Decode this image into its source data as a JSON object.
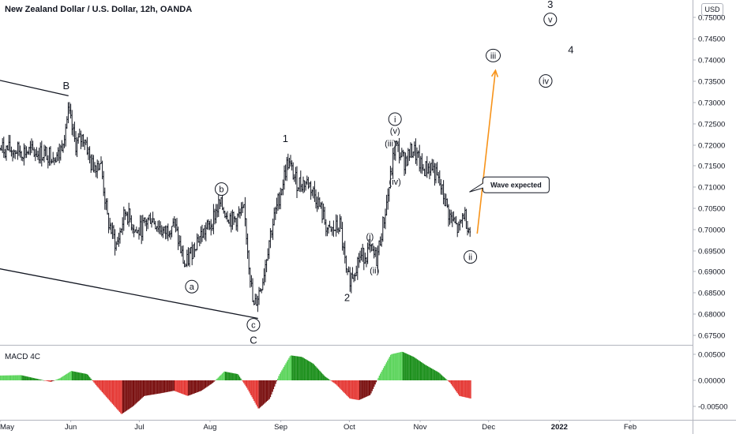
{
  "header": {
    "title": "New Zealand Dollar / U.S. Dollar, 12h, OANDA",
    "currency": "USD",
    "indicator": "MACD 4C"
  },
  "colors": {
    "bars": "#131722",
    "trendline": "#131722",
    "arrow": "#f7931a",
    "macd_positive": "#5bd45b",
    "macd_negative": "#e53935",
    "axis_text": "#131722",
    "grid_divider": "#b2b5be"
  },
  "chart_data": [
    {
      "type": "ohlc",
      "title": "New Zealand Dollar / U.S. Dollar, 12h, OANDA",
      "x_tick_labels": [
        "May",
        "Jun",
        "Jul",
        "Aug",
        "Sep",
        "Oct",
        "Nov",
        "Dec",
        "2022",
        "Feb"
      ],
      "y_tick_labels": [
        "0.75000",
        "0.74500",
        "0.74000",
        "0.73500",
        "0.73000",
        "0.72500",
        "0.72000",
        "0.71500",
        "0.71000",
        "0.70500",
        "0.70000",
        "0.69500",
        "0.69000",
        "0.68500",
        "0.68000",
        "0.67500"
      ],
      "ylim": [
        0.6735,
        0.7525
      ],
      "price_path": [
        {
          "date": "2021-05-27",
          "price": 0.7175
        },
        {
          "date": "2021-05-31",
          "price": 0.7275
        },
        {
          "date": "2021-06-03",
          "price": 0.72
        },
        {
          "date": "2021-06-07",
          "price": 0.722
        },
        {
          "date": "2021-06-10",
          "price": 0.715
        },
        {
          "date": "2021-06-14",
          "price": 0.716
        },
        {
          "date": "2021-06-17",
          "price": 0.7025
        },
        {
          "date": "2021-06-21",
          "price": 0.696
        },
        {
          "date": "2021-06-25",
          "price": 0.7045
        },
        {
          "date": "2021-06-30",
          "price": 0.699
        },
        {
          "date": "2021-07-06",
          "price": 0.703
        },
        {
          "date": "2021-07-12",
          "price": 0.699
        },
        {
          "date": "2021-07-16",
          "price": 0.702
        },
        {
          "date": "2021-07-21",
          "price": 0.691
        },
        {
          "date": "2021-07-26",
          "price": 0.6975
        },
        {
          "date": "2021-08-01",
          "price": 0.701
        },
        {
          "date": "2021-08-05",
          "price": 0.706
        },
        {
          "date": "2021-08-11",
          "price": 0.702
        },
        {
          "date": "2021-08-16",
          "price": 0.704
        },
        {
          "date": "2021-08-20",
          "price": 0.681
        },
        {
          "date": "2021-08-24",
          "price": 0.688
        },
        {
          "date": "2021-08-27",
          "price": 0.698
        },
        {
          "date": "2021-08-31",
          "price": 0.707
        },
        {
          "date": "2021-09-04",
          "price": 0.716
        },
        {
          "date": "2021-09-08",
          "price": 0.711
        },
        {
          "date": "2021-09-13",
          "price": 0.711
        },
        {
          "date": "2021-09-17",
          "price": 0.707
        },
        {
          "date": "2021-09-22",
          "price": 0.699
        },
        {
          "date": "2021-09-27",
          "price": 0.701
        },
        {
          "date": "2021-09-30",
          "price": 0.688
        },
        {
          "date": "2021-10-02",
          "price": 0.689
        },
        {
          "date": "2021-10-05",
          "price": 0.693
        },
        {
          "date": "2021-10-10",
          "price": 0.695
        },
        {
          "date": "2021-10-13",
          "price": 0.693
        },
        {
          "date": "2021-10-17",
          "price": 0.705
        },
        {
          "date": "2021-10-19",
          "price": 0.712
        },
        {
          "date": "2021-10-21",
          "price": 0.72
        },
        {
          "date": "2021-10-25",
          "price": 0.716
        },
        {
          "date": "2021-10-29",
          "price": 0.719
        },
        {
          "date": "2021-11-02",
          "price": 0.714
        },
        {
          "date": "2021-11-06",
          "price": 0.715
        },
        {
          "date": "2021-11-10",
          "price": 0.71
        },
        {
          "date": "2021-11-14",
          "price": 0.703
        },
        {
          "date": "2021-11-18",
          "price": 0.6995
        },
        {
          "date": "2021-11-20",
          "price": 0.704
        },
        {
          "date": "2021-11-23",
          "price": 0.6995
        }
      ],
      "wave_labels": [
        {
          "text": "B",
          "date": "2021-05-30",
          "price": 0.734,
          "style": "plain"
        },
        {
          "text": "a",
          "date": "2021-07-24",
          "price": 0.6865,
          "style": "circled"
        },
        {
          "text": "b",
          "date": "2021-08-06",
          "price": 0.7095,
          "style": "circled"
        },
        {
          "text": "c",
          "date": "2021-08-20",
          "price": 0.6775,
          "style": "circled"
        },
        {
          "text": "C",
          "date": "2021-08-20",
          "price": 0.674,
          "style": "plain"
        },
        {
          "text": "1",
          "date": "2021-09-03",
          "price": 0.7215,
          "style": "plain"
        },
        {
          "text": "2",
          "date": "2021-09-30",
          "price": 0.684,
          "style": "plain"
        },
        {
          "text": "(i)",
          "date": "2021-10-10",
          "price": 0.6985,
          "style": "plain"
        },
        {
          "text": "(ii)",
          "date": "2021-10-12",
          "price": 0.6905,
          "style": "plain"
        },
        {
          "text": "(iii)",
          "date": "2021-10-19",
          "price": 0.7205,
          "style": "plain"
        },
        {
          "text": "(iv)",
          "date": "2021-10-21",
          "price": 0.7115,
          "style": "plain"
        },
        {
          "text": "(v)",
          "date": "2021-10-21",
          "price": 0.7235,
          "style": "plain"
        },
        {
          "text": "i",
          "date": "2021-10-21",
          "price": 0.726,
          "style": "circled"
        },
        {
          "text": "ii",
          "date": "2021-11-23",
          "price": 0.6935,
          "style": "circled"
        },
        {
          "text": "iii",
          "date": "2021-12-03",
          "price": 0.741,
          "style": "circled"
        },
        {
          "text": "iv",
          "date": "2021-12-26",
          "price": 0.735,
          "style": "circled"
        },
        {
          "text": "v",
          "date": "2021-12-28",
          "price": 0.7495,
          "style": "circled"
        },
        {
          "text": "3",
          "date": "2021-12-28",
          "price": 0.7532,
          "style": "plain"
        },
        {
          "text": "4",
          "date": "2022-01-06",
          "price": 0.7425,
          "style": "plain"
        }
      ],
      "trendlines": [
        {
          "name": "upper",
          "from": {
            "date": "2021-04-28",
            "price": 0.7355
          },
          "to": {
            "date": "2021-05-31",
            "price": 0.7315
          }
        },
        {
          "name": "lower",
          "from": {
            "date": "2021-04-28",
            "price": 0.691
          },
          "to": {
            "date": "2021-08-22",
            "price": 0.679
          }
        }
      ],
      "projection_arrow": {
        "from": {
          "date": "2021-11-26",
          "price": 0.699
        },
        "to": {
          "date": "2021-12-04",
          "price": 0.7375
        }
      },
      "callout": {
        "text": "Wave expected",
        "date": "2021-12-13",
        "price": 0.7105
      }
    },
    {
      "type": "histogram",
      "title": "MACD 4C",
      "y_tick_labels": [
        "0.00500",
        "0.00000",
        "-0.00500"
      ],
      "ylim": [
        -0.0075,
        0.0067
      ],
      "values": [
        {
          "date": "2021-04-28",
          "value": 0.0009
        },
        {
          "date": "2021-05-10",
          "value": 0.001
        },
        {
          "date": "2021-05-18",
          "value": 0.0002
        },
        {
          "date": "2021-05-23",
          "value": -0.0003
        },
        {
          "date": "2021-05-27",
          "value": 0.0004
        },
        {
          "date": "2021-06-01",
          "value": 0.0018
        },
        {
          "date": "2021-06-08",
          "value": 0.0012
        },
        {
          "date": "2021-06-12",
          "value": -0.001
        },
        {
          "date": "2021-06-17",
          "value": -0.0035
        },
        {
          "date": "2021-06-23",
          "value": -0.0065
        },
        {
          "date": "2021-06-28",
          "value": -0.005
        },
        {
          "date": "2021-07-03",
          "value": -0.003
        },
        {
          "date": "2021-07-10",
          "value": -0.0025
        },
        {
          "date": "2021-07-16",
          "value": -0.002
        },
        {
          "date": "2021-07-22",
          "value": -0.003
        },
        {
          "date": "2021-07-28",
          "value": -0.002
        },
        {
          "date": "2021-08-02",
          "value": -0.0005
        },
        {
          "date": "2021-08-07",
          "value": 0.0017
        },
        {
          "date": "2021-08-13",
          "value": 0.0012
        },
        {
          "date": "2021-08-17",
          "value": -0.0015
        },
        {
          "date": "2021-08-22",
          "value": -0.0055
        },
        {
          "date": "2021-08-27",
          "value": -0.0035
        },
        {
          "date": "2021-08-31",
          "value": 0.001
        },
        {
          "date": "2021-09-05",
          "value": 0.0048
        },
        {
          "date": "2021-09-10",
          "value": 0.0045
        },
        {
          "date": "2021-09-15",
          "value": 0.0032
        },
        {
          "date": "2021-09-20",
          "value": 0.0008
        },
        {
          "date": "2021-09-25",
          "value": -0.0008
        },
        {
          "date": "2021-10-01",
          "value": -0.0035
        },
        {
          "date": "2021-10-05",
          "value": -0.0038
        },
        {
          "date": "2021-10-10",
          "value": -0.0028
        },
        {
          "date": "2021-10-14",
          "value": 0.001
        },
        {
          "date": "2021-10-19",
          "value": 0.005
        },
        {
          "date": "2021-10-24",
          "value": 0.0055
        },
        {
          "date": "2021-10-29",
          "value": 0.0045
        },
        {
          "date": "2021-11-03",
          "value": 0.003
        },
        {
          "date": "2021-11-09",
          "value": 0.0015
        },
        {
          "date": "2021-11-14",
          "value": -0.0005
        },
        {
          "date": "2021-11-18",
          "value": -0.003
        },
        {
          "date": "2021-11-23",
          "value": -0.0035
        }
      ]
    }
  ]
}
